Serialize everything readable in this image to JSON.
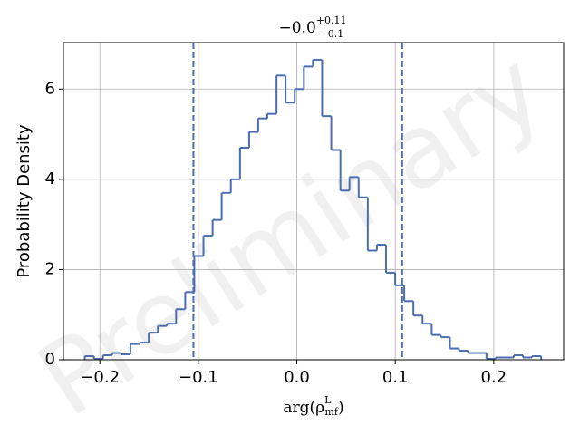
{
  "chart_data": {
    "type": "step-histogram",
    "title": {
      "main": "−0.0",
      "upper": "+0.11",
      "lower": "−0.1"
    },
    "xlabel": {
      "base": "arg(ρ",
      "sup": "L",
      "sub": "mf",
      "close": ")"
    },
    "ylabel": "Probability Density",
    "watermark": "Preliminary",
    "color": "#4c6eb1",
    "grid": true,
    "xlim": [
      -0.237,
      0.271
    ],
    "ylim": [
      0,
      7.03
    ],
    "xticks": [
      {
        "value": -0.2,
        "label": "−0.2"
      },
      {
        "value": -0.1,
        "label": "−0.1"
      },
      {
        "value": 0,
        "label": "0.0"
      },
      0.1,
      0.2
    ],
    "yticks": [
      0,
      2,
      4,
      6
    ],
    "vlines": [
      -0.105,
      0.107
    ],
    "bins": [
      -0.2153,
      -0.206,
      -0.1968,
      -0.1875,
      -0.1782,
      -0.169,
      -0.1597,
      -0.1504,
      -0.1411,
      -0.1319,
      -0.1226,
      -0.1133,
      -0.1041,
      -0.0948,
      -0.0855,
      -0.0763,
      -0.067,
      -0.0577,
      -0.0484,
      -0.0392,
      -0.0299,
      -0.0206,
      -0.0114,
      -0.0021,
      0.0072,
      0.0164,
      0.0257,
      0.035,
      0.0443,
      0.0535,
      0.0628,
      0.0721,
      0.0813,
      0.0906,
      0.0999,
      0.1091,
      0.1184,
      0.1277,
      0.137,
      0.1462,
      0.1555,
      0.1648,
      0.174,
      0.1833,
      0.1926,
      0.2018,
      0.2111,
      0.2204,
      0.2297,
      0.2389,
      0.2482
    ],
    "values": [
      0.08,
      0.02,
      0.1,
      0.15,
      0.12,
      0.35,
      0.38,
      0.6,
      0.75,
      0.8,
      1.12,
      1.5,
      2.3,
      2.75,
      3.1,
      3.7,
      4.0,
      4.7,
      5.05,
      5.35,
      5.45,
      6.3,
      5.7,
      6.0,
      6.5,
      6.65,
      5.4,
      4.65,
      3.75,
      4.05,
      3.6,
      2.42,
      2.55,
      1.93,
      1.65,
      1.3,
      0.98,
      0.8,
      0.55,
      0.5,
      0.25,
      0.2,
      0.15,
      0.15,
      0.02,
      0.05,
      0.05,
      0.1,
      0.05,
      0.08
    ]
  }
}
